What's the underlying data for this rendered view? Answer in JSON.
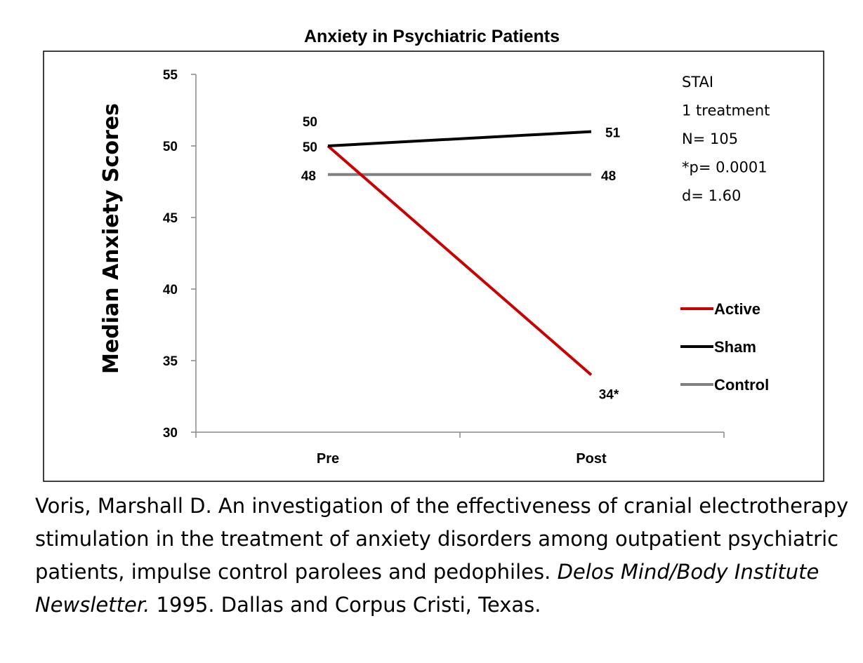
{
  "chart_data": {
    "type": "line",
    "title": "Anxiety in Psychiatric Patients",
    "xlabel": "",
    "ylabel": "Median Anxiety Scores",
    "categories": [
      "Pre",
      "Post"
    ],
    "ylim": [
      30,
      55
    ],
    "yticks": [
      30,
      35,
      40,
      45,
      50,
      55
    ],
    "grid": false,
    "legend_position": "right",
    "series": [
      {
        "name": "Active",
        "values": [
          50,
          34
        ],
        "color": "#cc0000",
        "labels": [
          "50",
          "34*"
        ]
      },
      {
        "name": "Sham",
        "values": [
          50,
          51
        ],
        "color": "#000000",
        "labels": [
          "50",
          "51"
        ]
      },
      {
        "name": "Control",
        "values": [
          48,
          48
        ],
        "color": "#808080",
        "labels": [
          "48",
          "48"
        ]
      }
    ],
    "annotations": [
      "STAI",
      "1 treatment",
      "N= 105",
      "*p= 0.0001",
      "d= 1.60"
    ]
  },
  "citation": {
    "pre": "Voris, Marshall D. An investigation of the effectiveness of cranial electrotherapy stimulation in the treatment of anxiety disorders among outpatient psychiatric patients, impulse control parolees and pedophiles.",
    "journal": "Delos Mind/Body Institute Newsletter.",
    "post": "1995. Dallas and Corpus Cristi, Texas."
  }
}
